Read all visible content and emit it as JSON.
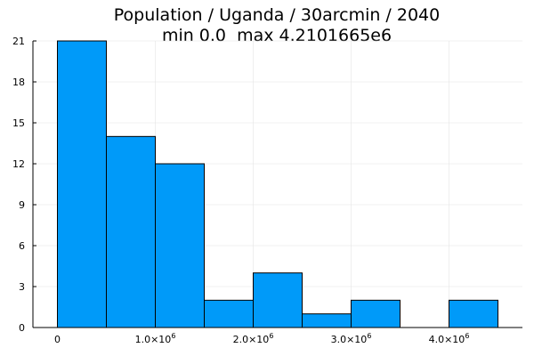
{
  "chart_data": {
    "type": "bar",
    "title": "Population / Uganda / 30arcmin / 2040",
    "subtitle": "min 0.0  max 4.2101665e6",
    "xlabel": "",
    "ylabel": "",
    "bin_width": 500000,
    "bins": [
      {
        "x_start": 0,
        "x_end": 500000,
        "count": 21
      },
      {
        "x_start": 500000,
        "x_end": 1000000,
        "count": 14
      },
      {
        "x_start": 1000000,
        "x_end": 1500000,
        "count": 12
      },
      {
        "x_start": 1500000,
        "x_end": 2000000,
        "count": 2
      },
      {
        "x_start": 2000000,
        "x_end": 2500000,
        "count": 4
      },
      {
        "x_start": 2500000,
        "x_end": 3000000,
        "count": 1
      },
      {
        "x_start": 3000000,
        "x_end": 3500000,
        "count": 2
      },
      {
        "x_start": 3500000,
        "x_end": 4000000,
        "count": 0
      },
      {
        "x_start": 4000000,
        "x_end": 4500000,
        "count": 2
      }
    ],
    "xlim": [
      -250000,
      4750000
    ],
    "ylim": [
      0,
      21
    ],
    "x_ticks": [
      {
        "value": 0,
        "label": "0",
        "exponent": ""
      },
      {
        "value": 1000000,
        "label": "1.0×10",
        "exponent": "6"
      },
      {
        "value": 2000000,
        "label": "2.0×10",
        "exponent": "6"
      },
      {
        "value": 3000000,
        "label": "3.0×10",
        "exponent": "6"
      },
      {
        "value": 4000000,
        "label": "4.0×10",
        "exponent": "6"
      }
    ],
    "y_ticks": [
      {
        "value": 0,
        "label": "0"
      },
      {
        "value": 3,
        "label": "3"
      },
      {
        "value": 6,
        "label": "6"
      },
      {
        "value": 9,
        "label": "9"
      },
      {
        "value": 12,
        "label": "12"
      },
      {
        "value": 15,
        "label": "15"
      },
      {
        "value": 18,
        "label": "18"
      },
      {
        "value": 21,
        "label": "21"
      }
    ],
    "grid": true,
    "legend": "none",
    "colors": {
      "bar_fill": "#009af9",
      "bar_stroke": "#000000",
      "grid": "#e5e5e5",
      "axis": "#000000"
    }
  }
}
